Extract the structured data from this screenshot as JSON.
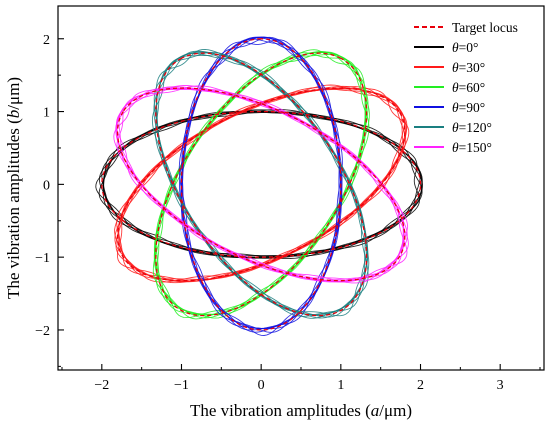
{
  "chart_data": {
    "type": "line",
    "title": "",
    "xlabel": "The vibration amplitudes (a/μm)",
    "ylabel": "The vibration amplitudes (b/μm)",
    "xlabel_parts": [
      "The vibration amplitudes (",
      "a",
      "/μm)"
    ],
    "ylabel_parts": [
      "The vibration amplitudes (",
      "b",
      "/μm)"
    ],
    "xlim": [
      -2.55,
      3.55
    ],
    "ylim": [
      -2.55,
      2.45
    ],
    "xticks": [
      -2,
      -1,
      0,
      1,
      2,
      3
    ],
    "yticks": [
      -2,
      -1,
      0,
      1,
      2
    ],
    "grid": false,
    "legend_position": "top-right",
    "curve_model": {
      "description": "elliptical locus rotated by theta",
      "semi_major": 2.0,
      "semi_minor": 1.0,
      "center": [
        0,
        0
      ]
    },
    "series": [
      {
        "name": "Target locus",
        "legend_parts": [
          "Target locus"
        ],
        "theta": null,
        "style": "dashed",
        "color": "#e8000b"
      },
      {
        "name": "θ=0°",
        "legend_parts": [
          "θ",
          "=0°"
        ],
        "theta": 0,
        "style": "solid",
        "color": "#000000"
      },
      {
        "name": "θ=30°",
        "legend_parts": [
          "θ",
          "=30°"
        ],
        "theta": 30,
        "style": "solid",
        "color": "#ff1a1a"
      },
      {
        "name": "θ=60°",
        "legend_parts": [
          "θ",
          "=60°"
        ],
        "theta": 60,
        "style": "solid",
        "color": "#22ee22"
      },
      {
        "name": "θ=90°",
        "legend_parts": [
          "θ",
          "=90°"
        ],
        "theta": 90,
        "style": "solid",
        "color": "#1010e0"
      },
      {
        "name": "θ=120°",
        "legend_parts": [
          "θ",
          "=120°"
        ],
        "theta": 120,
        "style": "solid",
        "color": "#1a7f80"
      },
      {
        "name": "θ=150°",
        "legend_parts": [
          "θ",
          "=150°"
        ],
        "theta": 150,
        "style": "solid",
        "color": "#ff22ff"
      }
    ]
  }
}
